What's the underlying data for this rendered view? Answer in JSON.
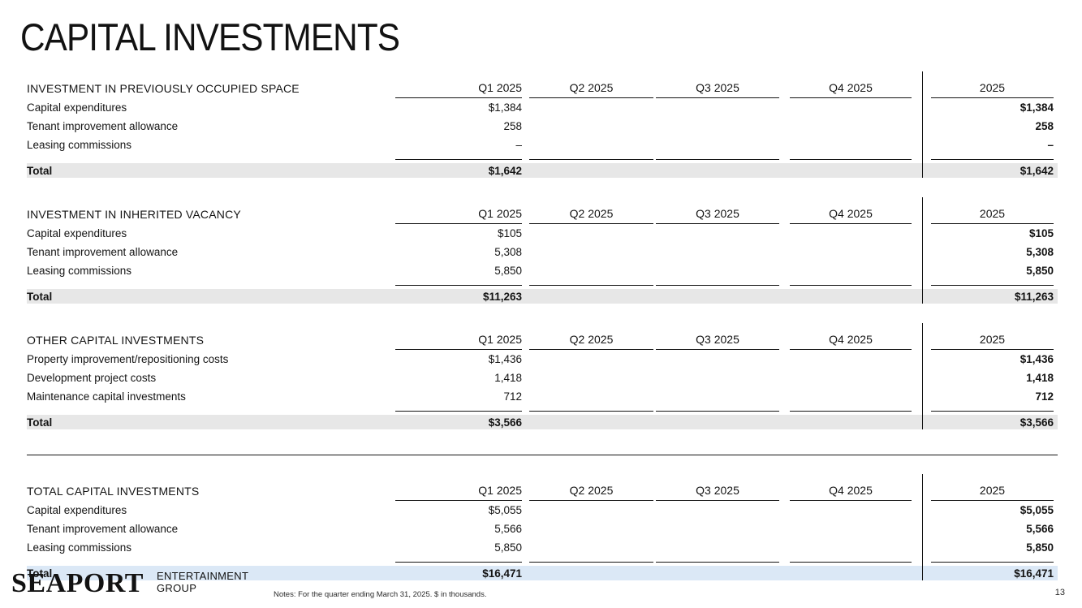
{
  "slide": {
    "title": "CAPITAL INVESTMENTS",
    "page_number": "13",
    "notes": "Notes: For the quarter ending March 31, 2025. $ in thousands.",
    "brand": {
      "wordmark": "SEAPORT",
      "subtitle_line1": "ENTERTAINMENT",
      "subtitle_line2": "GROUP"
    }
  },
  "columns": {
    "quarters": [
      "Q1 2025",
      "Q2 2025",
      "Q3 2025",
      "Q4 2025"
    ],
    "year": "2025"
  },
  "colors": {
    "total_row_gray": "#e7e7e7",
    "total_row_blue": "#dbe8f6",
    "text": "#141414",
    "line": "#141414"
  },
  "tables": [
    {
      "section": "INVESTMENT IN PREVIOUSLY OCCUPIED SPACE",
      "highlight": "gray",
      "separator_above": false,
      "rows": [
        {
          "label": "Capital expenditures",
          "q1": "$1,384",
          "q2": "",
          "q3": "",
          "q4": "",
          "year": "$1,384"
        },
        {
          "label": "Tenant improvement allowance",
          "q1": "258",
          "q2": "",
          "q3": "",
          "q4": "",
          "year": "258"
        },
        {
          "label": "Leasing commissions",
          "q1": "–",
          "q2": "",
          "q3": "",
          "q4": "",
          "year": "–"
        }
      ],
      "total": {
        "label": "Total",
        "q1": "$1,642",
        "q2": "",
        "q3": "",
        "q4": "",
        "year": "$1,642"
      }
    },
    {
      "section": "INVESTMENT IN INHERITED VACANCY",
      "highlight": "gray",
      "separator_above": false,
      "rows": [
        {
          "label": "Capital expenditures",
          "q1": "$105",
          "q2": "",
          "q3": "",
          "q4": "",
          "year": "$105"
        },
        {
          "label": "Tenant improvement allowance",
          "q1": "5,308",
          "q2": "",
          "q3": "",
          "q4": "",
          "year": "5,308"
        },
        {
          "label": "Leasing commissions",
          "q1": "5,850",
          "q2": "",
          "q3": "",
          "q4": "",
          "year": "5,850"
        }
      ],
      "total": {
        "label": "Total",
        "q1": "$11,263",
        "q2": "",
        "q3": "",
        "q4": "",
        "year": "$11,263"
      }
    },
    {
      "section": "OTHER CAPITAL INVESTMENTS",
      "highlight": "gray",
      "separator_above": false,
      "rows": [
        {
          "label": "Property improvement/repositioning costs",
          "q1": "$1,436",
          "q2": "",
          "q3": "",
          "q4": "",
          "year": "$1,436"
        },
        {
          "label": "Development project costs",
          "q1": "1,418",
          "q2": "",
          "q3": "",
          "q4": "",
          "year": "1,418"
        },
        {
          "label": "Maintenance capital investments",
          "q1": "712",
          "q2": "",
          "q3": "",
          "q4": "",
          "year": "712"
        }
      ],
      "total": {
        "label": "Total",
        "q1": "$3,566",
        "q2": "",
        "q3": "",
        "q4": "",
        "year": "$3,566"
      }
    },
    {
      "section": "TOTAL CAPITAL INVESTMENTS",
      "highlight": "blue",
      "separator_above": true,
      "rows": [
        {
          "label": "Capital expenditures",
          "q1": "$5,055",
          "q2": "",
          "q3": "",
          "q4": "",
          "year": "$5,055"
        },
        {
          "label": "Tenant improvement allowance",
          "q1": "5,566",
          "q2": "",
          "q3": "",
          "q4": "",
          "year": "5,566"
        },
        {
          "label": "Leasing commissions",
          "q1": "5,850",
          "q2": "",
          "q3": "",
          "q4": "",
          "year": "5,850"
        }
      ],
      "total": {
        "label": "Total",
        "q1": "$16,471",
        "q2": "",
        "q3": "",
        "q4": "",
        "year": "$16,471"
      }
    }
  ]
}
